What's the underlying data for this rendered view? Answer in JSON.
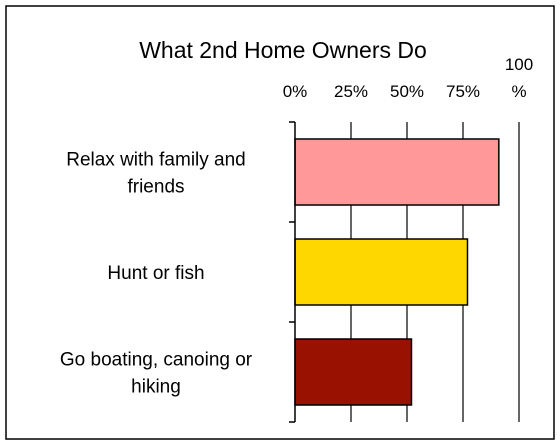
{
  "chart_data": {
    "type": "bar",
    "orientation": "horizontal",
    "title": "What 2nd Home Owners Do",
    "xlabel": "",
    "ylabel": "",
    "xlim": [
      0,
      100
    ],
    "x_ticks": [
      0,
      25,
      50,
      75,
      100
    ],
    "x_tick_labels": [
      "0%",
      "25%",
      "50%",
      "75%",
      "100 %"
    ],
    "axis_position": "top",
    "grid": "vertical",
    "categories": [
      "Relax with family and friends",
      "Hunt or fish",
      "Go boating, canoing or hiking"
    ],
    "values": [
      91,
      77,
      52
    ],
    "colors": [
      "#ff9999",
      "#ffd700",
      "#991100"
    ],
    "legend": "none"
  }
}
